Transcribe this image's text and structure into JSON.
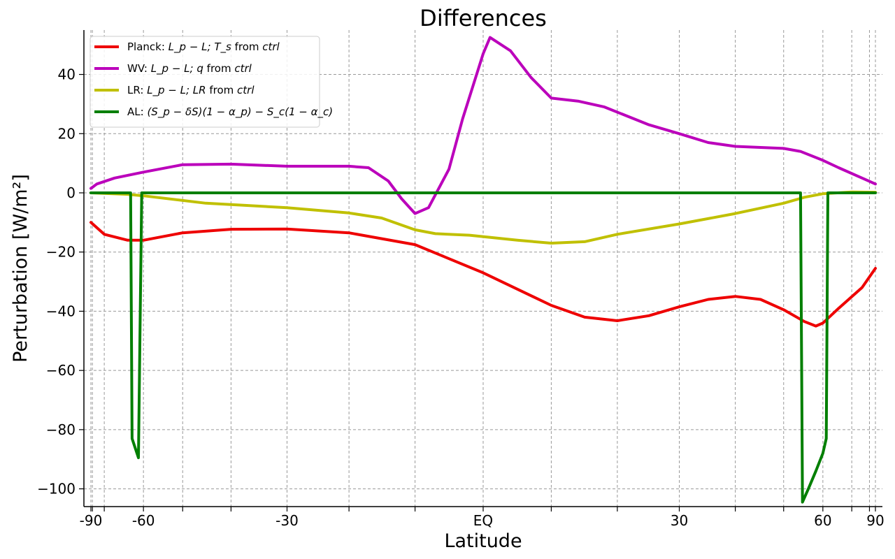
{
  "chart_data": {
    "type": "line",
    "title": "Differences",
    "xlabel": "Latitude",
    "ylabel": "Perturbation [W/m²]",
    "x_is_sine_latitude": true,
    "xlim": [
      -90,
      90
    ],
    "ylim": [
      -106,
      55
    ],
    "grid": true,
    "legend_position": "top-left",
    "x_ticks": [
      {
        "value": -90,
        "label": "-90"
      },
      {
        "value": -60,
        "label": "-60"
      },
      {
        "value": -30,
        "label": "-30"
      },
      {
        "value": 0,
        "label": "EQ"
      },
      {
        "value": 30,
        "label": "30"
      },
      {
        "value": 60,
        "label": "60"
      },
      {
        "value": 90,
        "label": "90"
      }
    ],
    "x_minor_ticks": [
      -85,
      -75,
      -50,
      -40,
      -20,
      -10,
      10,
      20,
      40,
      50,
      70,
      80
    ],
    "y_ticks": [
      {
        "value": 40,
        "label": "40"
      },
      {
        "value": 20,
        "label": "20"
      },
      {
        "value": 0,
        "label": "0"
      },
      {
        "value": -20,
        "label": "−20"
      },
      {
        "value": -40,
        "label": "−40"
      },
      {
        "value": -60,
        "label": "−60"
      },
      {
        "value": -80,
        "label": "−80"
      },
      {
        "value": -100,
        "label": "−100"
      }
    ],
    "series": [
      {
        "name": "Planck",
        "legend": {
          "prefix": "Planck: ",
          "math": "L_p − L; T_s",
          "suffix": " from ",
          "it": "ctrl"
        },
        "color": "#ee0000",
        "points": [
          [
            -90,
            -10
          ],
          [
            -75,
            -14
          ],
          [
            -65,
            -16
          ],
          [
            -60,
            -16
          ],
          [
            -50,
            -13.5
          ],
          [
            -40,
            -12.3
          ],
          [
            -30,
            -12.2
          ],
          [
            -20,
            -13.5
          ],
          [
            -10,
            -17.5
          ],
          [
            0,
            -27
          ],
          [
            10,
            -38
          ],
          [
            15,
            -42
          ],
          [
            20,
            -43.2
          ],
          [
            25,
            -41.5
          ],
          [
            30,
            -38.5
          ],
          [
            35,
            -36
          ],
          [
            40,
            -35
          ],
          [
            45,
            -36
          ],
          [
            50,
            -39.5
          ],
          [
            55,
            -43.5
          ],
          [
            58,
            -45
          ],
          [
            60,
            -44
          ],
          [
            65,
            -39
          ],
          [
            75,
            -32
          ],
          [
            90,
            -25.5
          ]
        ]
      },
      {
        "name": "WV",
        "legend": {
          "prefix": "WV: ",
          "math": "L_p − L; q",
          "suffix": " from ",
          "it": "ctrl"
        },
        "color": "#bb00bb",
        "points": [
          [
            -90,
            1.5
          ],
          [
            -80,
            3
          ],
          [
            -70,
            5
          ],
          [
            -60,
            7
          ],
          [
            -50,
            9.5
          ],
          [
            -40,
            9.7
          ],
          [
            -30,
            9
          ],
          [
            -20,
            9
          ],
          [
            -17,
            8.5
          ],
          [
            -14,
            4
          ],
          [
            -12,
            -2
          ],
          [
            -10,
            -7
          ],
          [
            -8,
            -5
          ],
          [
            -5,
            8
          ],
          [
            -3,
            25
          ],
          [
            0,
            47
          ],
          [
            1,
            52.5
          ],
          [
            4,
            48
          ],
          [
            7,
            39
          ],
          [
            10,
            32
          ],
          [
            14,
            31
          ],
          [
            18,
            29
          ],
          [
            25,
            23
          ],
          [
            30,
            20
          ],
          [
            35,
            17
          ],
          [
            40,
            15.7
          ],
          [
            50,
            15
          ],
          [
            54,
            14
          ],
          [
            60,
            11
          ],
          [
            65,
            8.5
          ],
          [
            75,
            5
          ],
          [
            90,
            3
          ]
        ]
      },
      {
        "name": "LR",
        "legend": {
          "prefix": "LR: ",
          "math": "L_p − L; LR",
          "suffix": " from ",
          "it": "ctrl"
        },
        "color": "#c0c000",
        "points": [
          [
            -90,
            0
          ],
          [
            -65,
            -0.5
          ],
          [
            -60,
            -1
          ],
          [
            -45,
            -3.5
          ],
          [
            -30,
            -5
          ],
          [
            -20,
            -6.8
          ],
          [
            -15,
            -8.5
          ],
          [
            -10,
            -12.5
          ],
          [
            -7,
            -13.8
          ],
          [
            -2,
            -14.3
          ],
          [
            5,
            -16
          ],
          [
            10,
            -17
          ],
          [
            15,
            -16.5
          ],
          [
            20,
            -14
          ],
          [
            30,
            -10.5
          ],
          [
            40,
            -7
          ],
          [
            50,
            -3.5
          ],
          [
            55,
            -1.5
          ],
          [
            60,
            -0.3
          ],
          [
            70,
            0.3
          ],
          [
            90,
            0.2
          ]
        ]
      },
      {
        "name": "AL",
        "legend": {
          "prefix": "AL: ",
          "math": "(S_p − δS)(1 − α_p) − S_c(1 − α_c)",
          "suffix": "",
          "it": ""
        },
        "color": "#007f00",
        "points": [
          [
            -90,
            0
          ],
          [
            -64,
            0
          ],
          [
            -63.5,
            -83
          ],
          [
            -61.5,
            -89.5
          ],
          [
            -60.5,
            0
          ],
          [
            54,
            0
          ],
          [
            54.5,
            -104.5
          ],
          [
            56,
            -100
          ],
          [
            58,
            -94
          ],
          [
            60,
            -88
          ],
          [
            61,
            -83
          ],
          [
            61.5,
            0
          ],
          [
            90,
            0
          ]
        ]
      }
    ]
  }
}
